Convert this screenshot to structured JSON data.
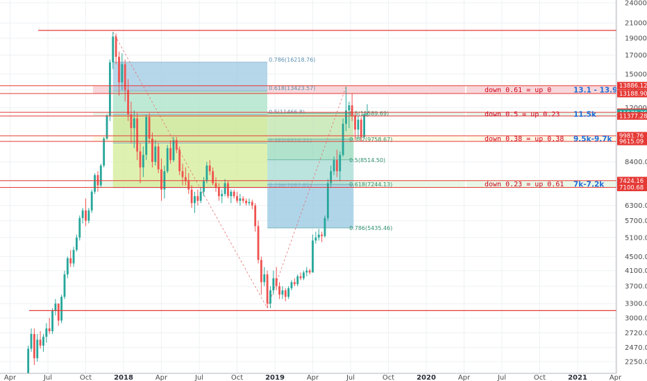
{
  "chart_data": {
    "type": "candlestick",
    "y_axis_ticks": [
      "24000.00",
      "21000.00",
      "19000.00",
      "17000.00",
      "15000.00",
      "13500.00",
      "12000.00",
      "8400.00",
      "7400.00",
      "6300.00",
      "5700.00",
      "5100.00",
      "4500.00",
      "4100.00",
      "3700.00",
      "3300.00",
      "3000.00",
      "2720.00",
      "2470.00",
      "2250.00"
    ],
    "x_axis_ticks": [
      {
        "label": "Apr",
        "t": -0.25,
        "bold": false
      },
      {
        "label": "Jul",
        "t": 0.0,
        "bold": false
      },
      {
        "label": "Oct",
        "t": 0.25,
        "bold": false
      },
      {
        "label": "2018",
        "t": 0.5,
        "bold": true
      },
      {
        "label": "Apr",
        "t": 0.75,
        "bold": false
      },
      {
        "label": "Jul",
        "t": 1.0,
        "bold": false
      },
      {
        "label": "Oct",
        "t": 1.25,
        "bold": false
      },
      {
        "label": "2019",
        "t": 1.5,
        "bold": true
      },
      {
        "label": "Apr",
        "t": 1.75,
        "bold": false
      },
      {
        "label": "Jul",
        "t": 2.0,
        "bold": false
      },
      {
        "label": "Oct",
        "t": 2.25,
        "bold": false
      },
      {
        "label": "2020",
        "t": 2.5,
        "bold": true
      },
      {
        "label": "Apr",
        "t": 2.75,
        "bold": false
      },
      {
        "label": "Jul",
        "t": 3.0,
        "bold": false
      },
      {
        "label": "Oct",
        "t": 3.25,
        "bold": false
      },
      {
        "label": "2021",
        "t": 3.5,
        "bold": true
      },
      {
        "label": "Apr",
        "t": 3.75,
        "bold": false
      }
    ],
    "candles": [
      [
        -0.15,
        1900,
        2050,
        1850,
        2000
      ],
      [
        -0.13,
        2000,
        2500,
        1950,
        2450
      ],
      [
        -0.11,
        2450,
        2800,
        2400,
        2700
      ],
      [
        -0.09,
        2700,
        2800,
        2200,
        2300
      ],
      [
        -0.07,
        2300,
        2700,
        2250,
        2600
      ],
      [
        -0.05,
        2600,
        2750,
        2450,
        2500
      ],
      [
        -0.03,
        2500,
        2700,
        2400,
        2650
      ],
      [
        -0.01,
        2650,
        2900,
        2550,
        2800
      ],
      [
        0.01,
        2800,
        3000,
        2700,
        2750
      ],
      [
        0.03,
        2750,
        3200,
        2700,
        3150
      ],
      [
        0.05,
        3150,
        3400,
        3050,
        3300
      ],
      [
        0.07,
        3300,
        3300,
        2850,
        2950
      ],
      [
        0.09,
        2950,
        3500,
        2900,
        3450
      ],
      [
        0.11,
        3450,
        4100,
        3400,
        4000
      ],
      [
        0.13,
        4000,
        4500,
        3900,
        4450
      ],
      [
        0.15,
        4450,
        4700,
        4200,
        4300
      ],
      [
        0.17,
        4300,
        4800,
        4200,
        4700
      ],
      [
        0.19,
        4700,
        5200,
        4650,
        5100
      ],
      [
        0.21,
        5100,
        5900,
        5000,
        5800
      ],
      [
        0.23,
        5800,
        6200,
        5600,
        6100
      ],
      [
        0.25,
        6100,
        6600,
        5500,
        5700
      ],
      [
        0.27,
        5700,
        6200,
        5600,
        6100
      ],
      [
        0.29,
        6100,
        7000,
        6000,
        6900
      ],
      [
        0.31,
        6900,
        7800,
        6800,
        7700
      ],
      [
        0.33,
        7700,
        7900,
        6900,
        7200
      ],
      [
        0.35,
        7200,
        8300,
        7100,
        8200
      ],
      [
        0.37,
        8200,
        9900,
        8100,
        9800
      ],
      [
        0.39,
        9800,
        11500,
        9700,
        11400
      ],
      [
        0.41,
        11400,
        16500,
        11000,
        16200
      ],
      [
        0.43,
        16200,
        19800,
        15500,
        19200
      ],
      [
        0.45,
        19200,
        19600,
        16000,
        16800
      ],
      [
        0.47,
        16800,
        17400,
        13000,
        14200
      ],
      [
        0.49,
        14200,
        17200,
        13500,
        16000
      ],
      [
        0.51,
        16000,
        16500,
        12500,
        13500
      ],
      [
        0.53,
        13500,
        14500,
        11000,
        11500
      ],
      [
        0.55,
        11500,
        12500,
        9500,
        10500
      ],
      [
        0.57,
        10500,
        11800,
        9200,
        11200
      ],
      [
        0.59,
        11200,
        11600,
        8500,
        9000
      ],
      [
        0.61,
        9000,
        9500,
        7300,
        8100
      ],
      [
        0.63,
        8100,
        9300,
        7600,
        8800
      ],
      [
        0.65,
        8800,
        11500,
        8500,
        11300
      ],
      [
        0.67,
        11300,
        11600,
        9500,
        9800
      ],
      [
        0.69,
        9800,
        10200,
        8100,
        8400
      ],
      [
        0.71,
        8400,
        9700,
        8200,
        9300
      ],
      [
        0.73,
        9300,
        9500,
        7800,
        8000
      ],
      [
        0.75,
        8000,
        8600,
        6500,
        7000
      ],
      [
        0.77,
        7000,
        8200,
        6600,
        7900
      ],
      [
        0.79,
        7900,
        9400,
        7800,
        9200
      ],
      [
        0.81,
        9200,
        9700,
        8300,
        8500
      ],
      [
        0.83,
        8500,
        9900,
        8400,
        9700
      ],
      [
        0.85,
        9700,
        9900,
        8900,
        9100
      ],
      [
        0.87,
        9100,
        9300,
        7700,
        7900
      ],
      [
        0.89,
        7900,
        8300,
        7200,
        7600
      ],
      [
        0.91,
        7600,
        8100,
        7200,
        7400
      ],
      [
        0.93,
        7400,
        7800,
        6800,
        7000
      ],
      [
        0.95,
        7000,
        7200,
        6200,
        6400
      ],
      [
        0.97,
        6400,
        6900,
        6000,
        6700
      ],
      [
        0.99,
        6700,
        7000,
        6300,
        6500
      ],
      [
        1.01,
        6500,
        7100,
        6400,
        6900
      ],
      [
        1.03,
        6900,
        7600,
        6700,
        7400
      ],
      [
        1.05,
        7400,
        8400,
        7300,
        8200
      ],
      [
        1.07,
        8200,
        8500,
        7700,
        7900
      ],
      [
        1.09,
        7900,
        8100,
        7200,
        7300
      ],
      [
        1.11,
        7300,
        7600,
        6900,
        7100
      ],
      [
        1.13,
        7100,
        7300,
        6500,
        6700
      ],
      [
        1.15,
        6700,
        7000,
        6400,
        6800
      ],
      [
        1.17,
        6800,
        7500,
        6700,
        7300
      ],
      [
        1.19,
        7300,
        7400,
        6600,
        6700
      ],
      [
        1.21,
        6700,
        7000,
        6400,
        6900
      ],
      [
        1.23,
        6900,
        7000,
        6600,
        6700
      ],
      [
        1.25,
        6700,
        6900,
        6400,
        6500
      ],
      [
        1.27,
        6500,
        6800,
        6300,
        6600
      ],
      [
        1.29,
        6600,
        6700,
        6400,
        6500
      ],
      [
        1.31,
        6500,
        6600,
        6300,
        6400
      ],
      [
        1.33,
        6400,
        6600,
        6300,
        6450
      ],
      [
        1.35,
        6450,
        6550,
        6150,
        6300
      ],
      [
        1.37,
        6300,
        6400,
        5300,
        5500
      ],
      [
        1.39,
        5500,
        5700,
        4300,
        4400
      ],
      [
        1.41,
        4400,
        4500,
        3500,
        3800
      ],
      [
        1.43,
        3800,
        4200,
        3700,
        4000
      ],
      [
        1.45,
        4000,
        4100,
        3200,
        3300
      ],
      [
        1.47,
        3300,
        3700,
        3200,
        3600
      ],
      [
        1.49,
        3600,
        4100,
        3500,
        3900
      ],
      [
        1.51,
        3900,
        4200,
        3600,
        3700
      ],
      [
        1.53,
        3700,
        3800,
        3400,
        3500
      ],
      [
        1.55,
        3500,
        3700,
        3400,
        3600
      ],
      [
        1.57,
        3600,
        3650,
        3350,
        3450
      ],
      [
        1.59,
        3450,
        3700,
        3400,
        3650
      ],
      [
        1.61,
        3650,
        3850,
        3600,
        3800
      ],
      [
        1.63,
        3800,
        3900,
        3700,
        3750
      ],
      [
        1.65,
        3750,
        4000,
        3700,
        3950
      ],
      [
        1.67,
        3950,
        4050,
        3850,
        3900
      ],
      [
        1.69,
        3900,
        4100,
        3850,
        4050
      ],
      [
        1.71,
        4050,
        4200,
        3950,
        4100
      ],
      [
        1.73,
        4100,
        4150,
        4000,
        4050
      ],
      [
        1.75,
        4050,
        5200,
        4050,
        5000
      ],
      [
        1.77,
        5000,
        5300,
        4900,
        5100
      ],
      [
        1.79,
        5100,
        5400,
        5000,
        5200
      ],
      [
        1.81,
        5200,
        5300,
        4950,
        5150
      ],
      [
        1.83,
        5150,
        5900,
        5100,
        5800
      ],
      [
        1.85,
        5800,
        7500,
        5700,
        7300
      ],
      [
        1.87,
        7300,
        8200,
        7100,
        7900
      ],
      [
        1.89,
        7900,
        8700,
        7700,
        8500
      ],
      [
        1.91,
        8500,
        9100,
        7600,
        7900
      ],
      [
        1.93,
        7900,
        9000,
        7400,
        8800
      ],
      [
        1.95,
        8800,
        11200,
        8700,
        10800
      ],
      [
        1.97,
        10800,
        13800,
        10300,
        11800
      ],
      [
        1.99,
        11800,
        12500,
        10500,
        12200
      ],
      [
        2.01,
        12200,
        13200,
        11000,
        11400
      ],
      [
        2.03,
        11400,
        11600,
        9700,
        10400
      ],
      [
        2.05,
        10400,
        11400,
        9800,
        11100
      ],
      [
        2.07,
        11100,
        11300,
        9600,
        9900
      ],
      [
        2.09,
        9900,
        11700,
        9800,
        11500
      ],
      [
        2.11,
        11500,
        12300,
        11300,
        11580
      ]
    ],
    "fib_upper": {
      "title": "",
      "levels": [
        {
          "label": "0.786(16218.76)",
          "value": 16218.76
        },
        {
          "label": "0.618(13423.57)",
          "value": 13423.57
        },
        {
          "label": "0.5(11466.8)",
          "value": 11466.8
        },
        {
          "label": "0.382(9510.21)",
          "value": 9510.21
        },
        {
          "label": "0.236(7087.81)",
          "value": 7087.81
        }
      ]
    },
    "fib_lower": {
      "levels": [
        {
          "label": "0.5(11589.69)",
          "value": 11589.69
        },
        {
          "label": "0.382(9758.67)",
          "value": 9758.67
        },
        {
          "label": "0.5(8514.50)",
          "value": 8514.5
        },
        {
          "label": "0.618(7244.13)",
          "value": 7244.13
        },
        {
          "label": "0.786(5435.46)",
          "value": 5435.46
        }
      ]
    },
    "price_tags": [
      {
        "label": "13886.12",
        "value": 13886.12,
        "color": "#e53935"
      },
      {
        "label": "13188.90",
        "value": 13188.9,
        "color": "#e53935"
      },
      {
        "label": "11651.99",
        "value": 11651.99,
        "color": "#e53935"
      },
      {
        "label": "11579.35",
        "value": 11579.35,
        "color": "#26a69a"
      },
      {
        "label": "11377.28",
        "value": 11377.28,
        "color": "#e53935"
      },
      {
        "label": "9981.76",
        "value": 9981.76,
        "color": "#e53935"
      },
      {
        "label": "9615.09",
        "value": 9615.09,
        "color": "#e53935"
      },
      {
        "label": "7424.16",
        "value": 7424.16,
        "color": "#e53935"
      },
      {
        "label": "7100.68",
        "value": 7100.68,
        "color": "#e53935"
      }
    ],
    "annotations": [
      {
        "note": "down 0.61 = up 0",
        "range": "13.1 - 13.9k"
      },
      {
        "note": "down 0.5 = up 0.23",
        "range": "11.5k"
      },
      {
        "note": "down 0.38 = up 0.38",
        "range": "9.5k-9.7k"
      },
      {
        "note": "down 0.23 = up 0.61",
        "range": "7k-7.2k"
      }
    ],
    "support_resistance": [
      20000,
      3150
    ],
    "colors": {
      "up": "#26a69a",
      "down": "#ef5350",
      "line": "#e53935",
      "label_text": "#1e6fd9"
    }
  }
}
